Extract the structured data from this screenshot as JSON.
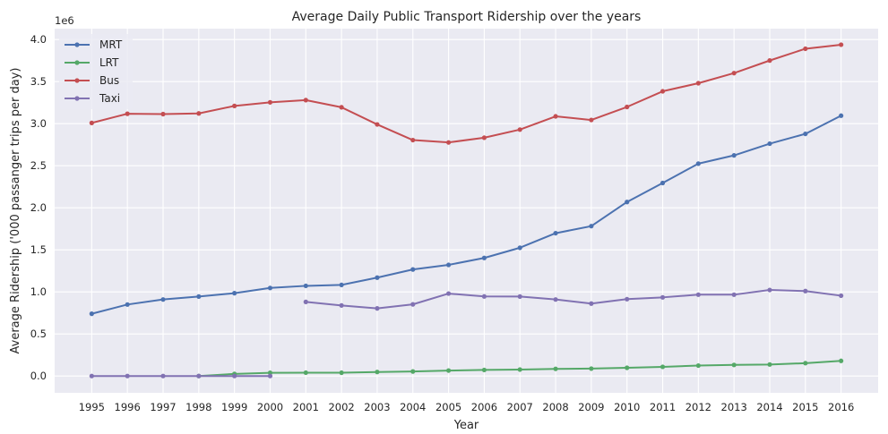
{
  "chart_data": {
    "type": "line",
    "title": "Average Daily Public Transport Ridership over the years",
    "xlabel": "Year",
    "ylabel": "Average Ridership ('000 passanger trips per day)",
    "y_scale_label": "1e6",
    "x": [
      "1995",
      "1996",
      "1997",
      "1998",
      "1999",
      "2000",
      "2001",
      "2002",
      "2003",
      "2004",
      "2005",
      "2006",
      "2007",
      "2008",
      "2009",
      "2010",
      "2011",
      "2012",
      "2013",
      "2014",
      "2015",
      "2016"
    ],
    "ylim": [
      -200000,
      4130000
    ],
    "yticks": [
      0,
      500000,
      1000000,
      1500000,
      2000000,
      2500000,
      3000000,
      3500000,
      4000000
    ],
    "ytick_labels": [
      "0.0",
      "0.5",
      "1.0",
      "1.5",
      "2.0",
      "2.5",
      "3.0",
      "3.5",
      "4.0"
    ],
    "grid": true,
    "legend_position": "top-left",
    "series": [
      {
        "name": "MRT",
        "color": "#4c72b0",
        "values": [
          740000,
          850000,
          910000,
          945000,
          985000,
          1047000,
          1072000,
          1083000,
          1170000,
          1267000,
          1321000,
          1404000,
          1525000,
          1698000,
          1782000,
          2069000,
          2295000,
          2525000,
          2623000,
          2762000,
          2879000,
          3095000
        ],
        "breaks": []
      },
      {
        "name": "LRT",
        "color": "#55a868",
        "values": [
          null,
          null,
          null,
          0,
          25000,
          38000,
          40000,
          39000,
          48000,
          54000,
          65000,
          72000,
          77000,
          85000,
          88000,
          98000,
          109000,
          124000,
          132000,
          137000,
          153000,
          180000
        ],
        "breaks": []
      },
      {
        "name": "Bus",
        "color": "#c44e52",
        "values": [
          3009000,
          3118000,
          3114000,
          3122000,
          3211000,
          3254000,
          3280000,
          3195000,
          2991000,
          2805000,
          2777000,
          2833000,
          2930000,
          3087000,
          3044000,
          3199000,
          3385000,
          3481000,
          3601000,
          3751000,
          3891000,
          3939000
        ],
        "breaks": []
      },
      {
        "name": "Taxi",
        "color": "#8172b2",
        "values": [
          0,
          0,
          0,
          0,
          0,
          0,
          881000,
          839000,
          804000,
          852000,
          980000,
          946000,
          945000,
          910000,
          861000,
          914000,
          935000,
          967000,
          967000,
          1023000,
          1010000,
          955000
        ],
        "breaks": [
          5
        ]
      }
    ]
  }
}
